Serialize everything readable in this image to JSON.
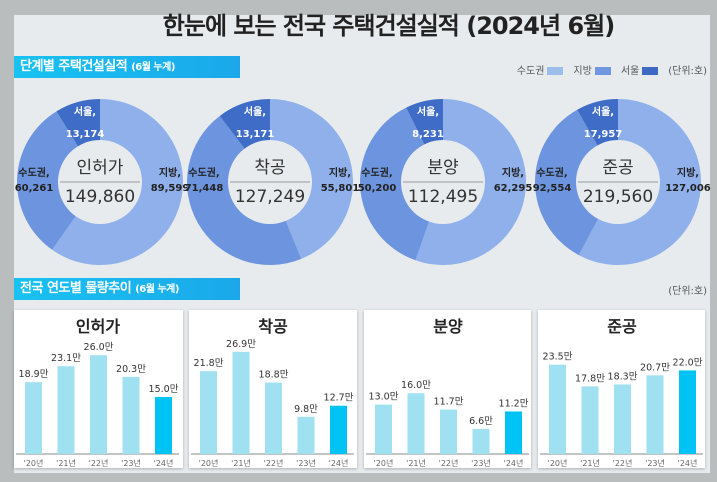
{
  "title": "한눈에 보는 전국 주택건설실적 (2024년 6월)",
  "section1": {
    "label": "단계별 주택건설실적",
    "sub": "(6월 누계)"
  },
  "section2": {
    "label": "전국 연도별 물량추이",
    "sub": "(6월 누계)"
  },
  "legend": {
    "items": [
      {
        "label": "수도권",
        "color": "#9dbdeb"
      },
      {
        "label": "지방",
        "color": "#6f98e0"
      },
      {
        "label": "서울",
        "color": "#3d69c4"
      }
    ],
    "unit": "(단위:호)"
  },
  "unit2": "(단위:호)",
  "chart_data": [
    {
      "type": "pie",
      "title": "인허가",
      "total": "149,860",
      "slices": [
        {
          "name": "지방",
          "value": 89599,
          "label": "89,599"
        },
        {
          "name": "수도권",
          "value": 60261,
          "label": "60,261"
        },
        {
          "name": "서울",
          "value": 13174,
          "label": "13,174"
        }
      ]
    },
    {
      "type": "pie",
      "title": "착공",
      "total": "127,249",
      "slices": [
        {
          "name": "지방",
          "value": 55801,
          "label": "55,801"
        },
        {
          "name": "수도권",
          "value": 71448,
          "label": "71,448"
        },
        {
          "name": "서울",
          "value": 13171,
          "label": "13,171"
        }
      ]
    },
    {
      "type": "pie",
      "title": "분양",
      "total": "112,495",
      "slices": [
        {
          "name": "지방",
          "value": 62295,
          "label": "62,295"
        },
        {
          "name": "수도권",
          "value": 50200,
          "label": "50,200"
        },
        {
          "name": "서울",
          "value": 8231,
          "label": "8,231"
        }
      ]
    },
    {
      "type": "pie",
      "title": "준공",
      "total": "219,560",
      "slices": [
        {
          "name": "지방",
          "value": 127006,
          "label": "127,006"
        },
        {
          "name": "수도권",
          "value": 92554,
          "label": "92,554"
        },
        {
          "name": "서울",
          "value": 17957,
          "label": "17,957"
        }
      ]
    },
    {
      "type": "bar",
      "title": "인허가",
      "categories": [
        "'20년",
        "'21년",
        "'22년",
        "'23년",
        "'24년"
      ],
      "values": [
        18.9,
        23.1,
        26.0,
        20.3,
        15.0
      ],
      "value_suffix": "만"
    },
    {
      "type": "bar",
      "title": "착공",
      "categories": [
        "'20년",
        "'21년",
        "'22년",
        "'23년",
        "'24년"
      ],
      "values": [
        21.8,
        26.9,
        18.8,
        9.8,
        12.7
      ],
      "value_suffix": "만"
    },
    {
      "type": "bar",
      "title": "분양",
      "categories": [
        "'20년",
        "'21년",
        "'22년",
        "'23년",
        "'24년"
      ],
      "values": [
        13.0,
        16.0,
        11.7,
        6.6,
        11.2
      ],
      "value_suffix": "만"
    },
    {
      "type": "bar",
      "title": "준공",
      "categories": [
        "'20년",
        "'21년",
        "'22년",
        "'23년",
        "'24년"
      ],
      "values": [
        23.5,
        17.8,
        18.3,
        20.7,
        22.0
      ],
      "value_suffix": "만"
    }
  ],
  "colors": {
    "bar": "#9fe1f0",
    "bar_highlight": "#00c3f5",
    "local": "#8fb0ea",
    "capital": "#6d95df",
    "seoul": "#3f6cc6"
  }
}
